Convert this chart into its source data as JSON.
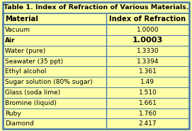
{
  "title": "Table 1. Index of Refraction of Various Materials.",
  "col1_header": "Material",
  "col2_header": "Index of Refraction",
  "rows": [
    [
      "Vacuum",
      "1.0000",
      false
    ],
    [
      "Air",
      "1.0003",
      true
    ],
    [
      "Water (pure)",
      "1.3330",
      false
    ],
    [
      "Seawater (35 ppt)",
      "1.3394",
      false
    ],
    [
      "Ethyl alcohol",
      "1.361",
      false
    ],
    [
      "Sugar solution (80% sugar)",
      "1.49",
      false
    ],
    [
      "Glass (soda lime)",
      "1.510",
      false
    ],
    [
      "Bromine (liquid)",
      "1.661",
      false
    ],
    [
      "Ruby",
      "1.760",
      false
    ],
    [
      "Diamond",
      "2.417",
      false
    ]
  ],
  "bg_color": "#FFFFA8",
  "border_color": "#4477AA",
  "text_color": "#000000",
  "title_fontsize": 6.8,
  "header_fontsize": 7.2,
  "cell_fontsize": 6.5,
  "figsize": [
    2.71,
    1.86
  ],
  "dpi": 100,
  "col_split": 0.555
}
